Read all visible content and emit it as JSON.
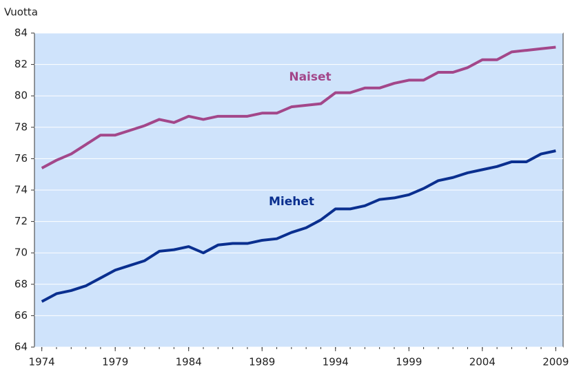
{
  "chart_data": {
    "type": "line",
    "y_label": "Vuotta",
    "x": [
      1974,
      1975,
      1976,
      1977,
      1978,
      1979,
      1980,
      1981,
      1982,
      1983,
      1984,
      1985,
      1986,
      1987,
      1988,
      1989,
      1990,
      1991,
      1992,
      1993,
      1994,
      1995,
      1996,
      1997,
      1998,
      1999,
      2000,
      2001,
      2002,
      2003,
      2004,
      2005,
      2006,
      2007,
      2008,
      2009
    ],
    "series": [
      {
        "name": "Naiset",
        "color": "#a3478a",
        "values": [
          75.4,
          75.9,
          76.3,
          76.9,
          77.5,
          77.5,
          77.8,
          78.1,
          78.5,
          78.3,
          78.7,
          78.5,
          78.7,
          78.7,
          78.7,
          78.9,
          78.9,
          79.3,
          79.4,
          79.5,
          80.2,
          80.2,
          80.5,
          80.5,
          80.8,
          81.0,
          81.0,
          81.5,
          81.5,
          81.8,
          82.3,
          82.3,
          82.8,
          82.9,
          83.0,
          83.1
        ]
      },
      {
        "name": "Miehet",
        "color": "#0a2f8f",
        "values": [
          66.9,
          67.4,
          67.6,
          67.9,
          68.4,
          68.9,
          69.2,
          69.5,
          70.1,
          70.2,
          70.4,
          70.0,
          70.5,
          70.6,
          70.6,
          70.8,
          70.9,
          71.3,
          71.6,
          72.1,
          72.8,
          72.8,
          73.0,
          73.4,
          73.5,
          73.7,
          74.1,
          74.6,
          74.8,
          75.1,
          75.3,
          75.5,
          75.8,
          75.8,
          76.3,
          76.5
        ]
      }
    ],
    "xlim": [
      1973.5,
      2009.5
    ],
    "xticks": [
      1974,
      1979,
      1984,
      1989,
      1994,
      1999,
      2004,
      2009
    ],
    "ylim": [
      64,
      84
    ],
    "yticks": [
      64,
      66,
      68,
      70,
      72,
      74,
      76,
      78,
      80,
      82,
      84
    ],
    "grid": true,
    "background": "#cfe3fb"
  }
}
